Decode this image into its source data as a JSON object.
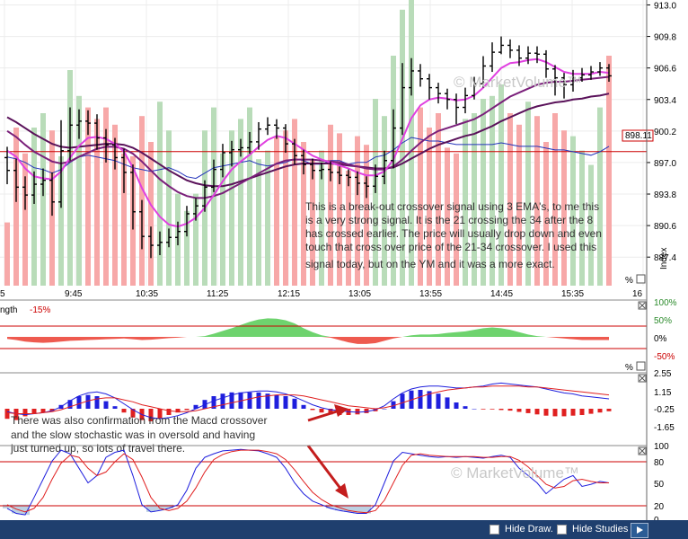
{
  "colors": {
    "up": "#b9dcb9",
    "down": "#f7a8a8",
    "ema_fast": "#e040e0",
    "ema_mid": "#7a1f7a",
    "ema_slow": "#5a125a",
    "ref_line": "#cc0000",
    "volume_line": "#2233bb",
    "macd_up": "#1f1fdd",
    "macd_down": "#e02020",
    "stoch_k": "#1f1fdd",
    "stoch_d": "#e02020",
    "osc_pos": "#6ed36e",
    "osc_neg": "#ee5a4f",
    "bar": "#1f3f6e"
  },
  "labels": {
    "price_ref": "898.11",
    "index_label": "Index",
    "osc_title": "ngth",
    "osc_value": "-15%",
    "percent_mark": "%",
    "watermark_top": "© MarketVolume™",
    "watermark_bottom": "© MarketVolume™",
    "note_main": [
      "This is a break-out crossover signal using 3 EMA's, to me this",
      "is a very strong signal. It is the 21 crossing the 34 after the 8",
      "has crossed earlier.  The price will usually drop down and even",
      "touch that cross over price of the 21-34 crossover. I used this",
      "signal today, but on the YM and it was a more exact."
    ],
    "note_macd": [
      "There was also confirmation from the Macd crossover",
      "and the slow stochastic was in oversold  and having",
      "just turned up, so lots of travel there."
    ],
    "hide_draw": "Hide Draw.",
    "hide_studies": "Hide Studies"
  },
  "chart_data": [
    {
      "type": "candlestick",
      "x_ticks": [
        "5",
        "9:45",
        "10:35",
        "11:25",
        "12:15",
        "13:05",
        "13:55",
        "14:45",
        "15:35",
        "16"
      ],
      "y_ticks": [
        913.0,
        909.8,
        906.6,
        903.4,
        900.2,
        897.0,
        893.8,
        890.6,
        887.4
      ],
      "ylim": [
        884.5,
        913.5
      ],
      "reference_line": 898.11,
      "candles": [
        [
          897.5,
          896.2,
          898.6,
          894.8
        ],
        [
          896.2,
          894.5,
          897.4,
          893.0
        ],
        [
          894.5,
          893.7,
          895.6,
          892.2
        ],
        [
          893.7,
          894.8,
          896.1,
          892.8
        ],
        [
          894.8,
          895.2,
          896.4,
          893.6
        ],
        [
          895.2,
          893.0,
          896.0,
          891.6
        ],
        [
          893.0,
          898.2,
          901.3,
          892.4
        ],
        [
          898.2,
          900.8,
          902.6,
          897.2
        ],
        [
          900.8,
          901.2,
          902.4,
          899.4
        ],
        [
          901.2,
          901.0,
          902.3,
          899.8
        ],
        [
          901.0,
          899.5,
          901.9,
          898.3
        ],
        [
          899.5,
          898.8,
          900.4,
          897.0
        ],
        [
          898.8,
          897.5,
          899.5,
          896.3
        ],
        [
          897.5,
          896.0,
          898.4,
          893.9
        ],
        [
          896.0,
          892.0,
          896.8,
          890.2
        ],
        [
          892.0,
          889.5,
          893.2,
          888.2
        ],
        [
          889.5,
          888.6,
          890.5,
          887.3
        ],
        [
          888.6,
          888.9,
          890.0,
          887.6
        ],
        [
          888.9,
          889.4,
          890.3,
          888.4
        ],
        [
          889.4,
          890.0,
          891.0,
          888.6
        ],
        [
          890.0,
          891.8,
          892.6,
          889.5
        ],
        [
          891.8,
          892.6,
          893.4,
          891.1
        ],
        [
          892.6,
          894.5,
          895.2,
          892.0
        ],
        [
          894.5,
          896.3,
          897.3,
          894.0
        ],
        [
          896.3,
          898.0,
          898.9,
          895.5
        ],
        [
          898.0,
          898.3,
          899.2,
          896.6
        ],
        [
          898.3,
          898.5,
          899.4,
          897.6
        ],
        [
          898.5,
          899.1,
          900.1,
          897.9
        ],
        [
          899.1,
          900.4,
          901.1,
          898.3
        ],
        [
          900.4,
          900.8,
          901.6,
          899.8
        ],
        [
          900.8,
          900.5,
          901.4,
          899.4
        ],
        [
          900.5,
          898.9,
          900.9,
          898.0
        ],
        [
          898.9,
          897.7,
          899.4,
          896.8
        ],
        [
          897.7,
          896.8,
          898.3,
          895.8
        ],
        [
          896.8,
          896.2,
          897.4,
          895.3
        ],
        [
          896.2,
          896.3,
          897.0,
          895.3
        ],
        [
          896.3,
          896.0,
          897.1,
          895.1
        ],
        [
          896.0,
          895.7,
          896.6,
          894.8
        ],
        [
          895.7,
          895.5,
          896.3,
          894.6
        ],
        [
          895.5,
          894.9,
          896.1,
          893.7
        ],
        [
          894.9,
          894.6,
          895.6,
          893.4
        ],
        [
          894.6,
          895.6,
          896.8,
          893.9
        ],
        [
          895.6,
          897.2,
          898.2,
          894.8
        ],
        [
          897.2,
          900.5,
          902.4,
          896.4
        ],
        [
          900.5,
          904.6,
          907.1,
          899.8
        ],
        [
          904.6,
          906.3,
          907.6,
          903.8
        ],
        [
          906.3,
          905.5,
          907.0,
          904.7
        ],
        [
          905.5,
          904.6,
          906.0,
          903.4
        ],
        [
          904.6,
          904.0,
          905.1,
          903.0
        ],
        [
          904.0,
          903.4,
          904.5,
          902.4
        ],
        [
          903.4,
          902.6,
          904.0,
          900.9
        ],
        [
          902.6,
          903.8,
          904.6,
          902.0
        ],
        [
          903.8,
          905.0,
          905.7,
          903.4
        ],
        [
          905.0,
          906.8,
          907.8,
          904.6
        ],
        [
          906.8,
          908.2,
          909.2,
          906.2
        ],
        [
          908.2,
          908.9,
          909.8,
          908.0
        ],
        [
          908.9,
          908.4,
          909.5,
          907.6
        ],
        [
          908.4,
          907.6,
          908.9,
          906.8
        ],
        [
          907.6,
          908.1,
          908.8,
          907.0
        ],
        [
          908.1,
          908.0,
          908.8,
          907.1
        ],
        [
          908.0,
          906.5,
          908.4,
          905.6
        ],
        [
          906.5,
          905.6,
          906.9,
          903.8
        ],
        [
          905.6,
          904.9,
          906.1,
          903.5
        ],
        [
          904.9,
          905.6,
          906.4,
          904.2
        ],
        [
          905.6,
          905.9,
          906.6,
          905.2
        ],
        [
          905.9,
          906.2,
          906.8,
          905.4
        ],
        [
          906.2,
          906.6,
          907.2,
          905.8
        ],
        [
          906.6,
          905.8,
          907.0,
          905.2
        ]
      ],
      "series": [
        {
          "values": [
            898.2,
            897.6,
            896.4,
            895.6,
            895.4,
            895.3,
            896.1,
            897.5,
            898.7,
            899.5,
            899.6,
            899.4,
            898.9,
            898.1,
            896.5,
            894.4,
            892.7,
            891.5,
            890.7,
            890.5,
            890.8,
            891.4,
            892.4,
            893.7,
            895.1,
            896.3,
            897.1,
            897.8,
            898.6,
            899.3,
            899.7,
            899.5,
            898.9,
            898.3,
            897.7,
            897.3,
            897.0,
            896.7,
            896.4,
            896.0,
            895.7,
            895.7,
            896.1,
            897.3,
            899.4,
            901.5,
            902.8,
            903.4,
            903.6,
            903.5,
            903.3,
            903.4,
            903.8,
            904.6,
            905.6,
            906.6,
            907.1,
            907.2,
            907.4,
            907.5,
            907.2,
            906.7,
            906.2,
            906.0,
            906.0,
            906.0,
            906.2,
            906.1
          ]
        },
        {
          "values": [
            900.2,
            899.6,
            898.8,
            898.1,
            897.6,
            897.1,
            896.9,
            897.1,
            897.6,
            898.0,
            898.4,
            898.6,
            898.6,
            898.4,
            897.9,
            897.1,
            896.2,
            895.3,
            894.6,
            894.0,
            893.6,
            893.4,
            893.4,
            893.6,
            893.9,
            894.4,
            894.9,
            895.4,
            895.9,
            896.4,
            896.9,
            897.2,
            897.3,
            897.3,
            897.3,
            897.2,
            897.1,
            897.0,
            896.8,
            896.6,
            896.4,
            896.3,
            896.3,
            896.6,
            897.3,
            898.2,
            899.0,
            899.7,
            900.2,
            900.5,
            900.8,
            901.1,
            901.4,
            901.9,
            902.5,
            903.1,
            903.7,
            904.1,
            904.5,
            904.9,
            905.1,
            905.2,
            905.2,
            905.3,
            905.4,
            905.5,
            905.6,
            905.7
          ]
        },
        {
          "values": [
            901.6,
            901.1,
            900.5,
            899.9,
            899.4,
            898.9,
            898.6,
            898.5,
            898.6,
            898.7,
            898.8,
            898.9,
            898.9,
            898.8,
            898.5,
            898.0,
            897.4,
            896.8,
            896.2,
            895.7,
            895.2,
            894.9,
            894.7,
            894.6,
            894.6,
            894.8,
            895.1,
            895.4,
            895.7,
            896.0,
            896.3,
            896.6,
            896.8,
            896.9,
            896.9,
            896.9,
            896.9,
            896.8,
            896.7,
            896.6,
            896.5,
            896.4,
            896.4,
            896.5,
            896.9,
            897.4,
            897.9,
            898.4,
            898.8,
            899.1,
            899.4,
            899.7,
            899.9,
            900.3,
            900.7,
            901.2,
            901.6,
            902.0,
            902.4,
            902.7,
            902.9,
            903.1,
            903.2,
            903.4,
            903.5,
            903.7,
            903.8,
            904.0
          ]
        }
      ]
    },
    {
      "type": "bar",
      "volume": [
        22,
        55,
        46,
        55,
        60,
        54,
        45,
        75,
        66,
        62,
        58,
        62,
        56,
        46,
        45,
        59,
        50,
        64,
        54,
        32,
        26,
        32,
        54,
        62,
        46,
        54,
        58,
        62,
        44,
        47,
        52,
        54,
        58,
        50,
        44,
        47,
        56,
        53,
        40,
        52,
        49,
        65,
        59,
        80,
        96,
        100,
        62,
        55,
        60,
        48,
        46,
        58,
        60,
        65,
        66,
        70,
        60,
        56,
        64,
        59,
        50,
        60,
        54,
        52,
        47,
        42,
        62,
        80
      ],
      "volume_line": [
        52,
        51,
        49,
        46,
        45,
        43,
        45,
        49,
        52,
        53,
        52,
        51,
        50,
        48,
        46,
        45,
        44,
        45,
        46,
        44,
        41,
        40,
        43,
        46,
        47,
        48,
        49,
        50,
        48,
        47,
        48,
        49,
        51,
        50,
        48,
        48,
        50,
        50,
        48,
        49,
        49,
        52,
        53,
        56,
        60,
        63,
        62,
        61,
        61,
        60,
        59,
        59,
        59,
        59,
        59,
        60,
        59,
        58,
        58,
        58,
        57,
        56,
        56,
        55,
        54,
        53,
        55,
        58
      ]
    },
    {
      "type": "area",
      "y_ticks": [
        "100%",
        "50%",
        "0%",
        "-50%"
      ],
      "values": [
        -5,
        -8,
        -12,
        -14,
        -15,
        -14,
        -12,
        -10,
        -9,
        -8,
        -7,
        -6,
        -5,
        -4,
        -6,
        -8,
        -7,
        -5,
        -3,
        -2,
        0,
        0,
        2,
        8,
        15,
        22,
        30,
        38,
        44,
        47,
        46,
        42,
        34,
        22,
        12,
        4,
        -2,
        -8,
        -14,
        -18,
        -18,
        -16,
        -10,
        -4,
        0,
        4,
        6,
        6,
        7,
        10,
        12,
        14,
        18,
        22,
        24,
        22,
        18,
        12,
        6,
        2,
        0,
        -2,
        -4,
        -6,
        -8,
        -8,
        -8,
        -8
      ]
    },
    {
      "type": "bar",
      "y_ticks": [
        2.55,
        1.15,
        -0.25,
        -1.65
      ],
      "histogram": [
        -0.8,
        -0.9,
        -0.6,
        -0.4,
        -0.3,
        -0.2,
        0.3,
        0.7,
        1.0,
        1.1,
        1.0,
        0.6,
        0.2,
        -0.3,
        -0.7,
        -0.9,
        -1.0,
        -0.8,
        -0.5,
        -0.3,
        -0.1,
        0.3,
        0.7,
        1.0,
        1.2,
        1.3,
        1.3,
        1.3,
        1.3,
        1.2,
        1.1,
        1.0,
        0.8,
        0.3,
        -0.1,
        -0.3,
        -0.45,
        -0.5,
        -0.5,
        -0.45,
        -0.35,
        -0.2,
        0.0,
        0.6,
        1.2,
        1.45,
        1.5,
        1.4,
        1.2,
        0.9,
        0.5,
        0.2,
        0.0,
        -0.05,
        -0.05,
        -0.1,
        -0.15,
        -0.25,
        -0.35,
        -0.45,
        -0.55,
        -0.6,
        -0.6,
        -0.55,
        -0.5,
        -0.4,
        -0.3,
        -0.2
      ],
      "macd": [
        -0.3,
        -0.5,
        -0.6,
        -0.5,
        -0.4,
        -0.2,
        0.2,
        0.8,
        1.3,
        1.6,
        1.7,
        1.5,
        1.1,
        0.5,
        -0.1,
        -0.6,
        -0.9,
        -1.0,
        -0.9,
        -0.7,
        -0.4,
        0.0,
        0.4,
        0.8,
        1.1,
        1.4,
        1.6,
        1.7,
        1.8,
        1.8,
        1.7,
        1.5,
        1.2,
        0.8,
        0.4,
        0.1,
        -0.1,
        -0.2,
        -0.3,
        -0.35,
        -0.3,
        -0.1,
        0.3,
        1.0,
        1.6,
        2.0,
        2.2,
        2.3,
        2.3,
        2.2,
        2.1,
        2.1,
        2.2,
        2.3,
        2.5,
        2.6,
        2.5,
        2.4,
        2.3,
        2.2,
        2.0,
        1.8,
        1.6,
        1.5,
        1.3,
        1.2,
        1.1,
        1.0
      ],
      "signal": [
        -0.4,
        -0.5,
        -0.5,
        -0.5,
        -0.4,
        -0.3,
        -0.1,
        0.2,
        0.5,
        0.8,
        1.0,
        1.1,
        1.1,
        0.9,
        0.7,
        0.4,
        0.2,
        0.0,
        -0.2,
        -0.3,
        -0.3,
        -0.2,
        0.0,
        0.2,
        0.4,
        0.6,
        0.8,
        1.0,
        1.2,
        1.3,
        1.4,
        1.4,
        1.4,
        1.3,
        1.1,
        0.9,
        0.7,
        0.5,
        0.3,
        0.2,
        0.1,
        0.0,
        0.1,
        0.3,
        0.6,
        0.9,
        1.2,
        1.5,
        1.7,
        1.9,
        2.0,
        2.1,
        2.2,
        2.2,
        2.3,
        2.3,
        2.3,
        2.3,
        2.2,
        2.2,
        2.1,
        2.0,
        1.9,
        1.8,
        1.7,
        1.6,
        1.5,
        1.4
      ]
    },
    {
      "type": "line",
      "y_ticks": [
        100,
        80,
        50,
        20,
        0
      ],
      "k": [
        15,
        8,
        6,
        30,
        55,
        80,
        95,
        90,
        70,
        50,
        60,
        85,
        92,
        95,
        60,
        20,
        10,
        12,
        15,
        20,
        40,
        70,
        85,
        90,
        94,
        95,
        96,
        95,
        94,
        90,
        85,
        70,
        50,
        35,
        25,
        20,
        15,
        12,
        10,
        8,
        8,
        20,
        50,
        80,
        92,
        90,
        88,
        86,
        85,
        86,
        85,
        86,
        85,
        84,
        86,
        88,
        85,
        70,
        60,
        50,
        35,
        45,
        55,
        60,
        45,
        48,
        52,
        50
      ],
      "d": [
        20,
        14,
        10,
        15,
        30,
        55,
        77,
        88,
        85,
        70,
        60,
        65,
        79,
        90,
        82,
        58,
        30,
        15,
        12,
        15,
        25,
        43,
        65,
        82,
        89,
        93,
        95,
        95,
        95,
        93,
        90,
        82,
        68,
        52,
        37,
        27,
        20,
        16,
        12,
        10,
        9,
        12,
        26,
        50,
        74,
        88,
        90,
        88,
        87,
        86,
        86,
        86,
        86,
        85,
        85,
        86,
        86,
        81,
        72,
        60,
        48,
        43,
        45,
        53,
        55,
        52,
        50,
        50
      ]
    }
  ]
}
